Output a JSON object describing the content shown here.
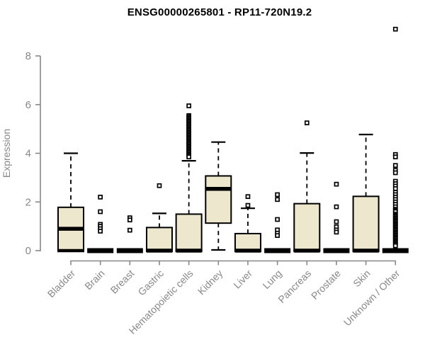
{
  "title": "ENSG00000265801 - RP11-720N19.2",
  "colors": {
    "box_fill": "#ece7cd",
    "box_border": "#000000",
    "axis": "#888888",
    "title_color": "#000000",
    "background": "#ffffff",
    "outlier_stroke": "#000000",
    "outlier_fill": "#ffffff"
  },
  "chart_data": {
    "type": "boxplot",
    "title": "ENSG00000265801 - RP11-720N19.2",
    "xlabel": "",
    "ylabel": "Expression",
    "ylim": [
      0,
      8
    ],
    "yticks": [
      0,
      2,
      4,
      6,
      8
    ],
    "grid": false,
    "legend": "none",
    "categories": [
      "Bladder",
      "Brain",
      "Breast",
      "Gastric",
      "Hematopoietic cells",
      "Kidney",
      "Liver",
      "Lung",
      "Pancreas",
      "Prostate",
      "Skin",
      "Unknown / Other"
    ],
    "series": [
      {
        "name": "Bladder",
        "q1": 0,
        "median": 0.9,
        "q3": 1.78,
        "whisker_low": 0,
        "whisker_high": 4.0,
        "outliers": []
      },
      {
        "name": "Brain",
        "q1": 0,
        "median": 0,
        "q3": 0,
        "whisker_low": 0,
        "whisker_high": 0,
        "outliers": [
          2.2,
          1.6,
          1.08,
          1.0,
          0.9,
          0.8
        ]
      },
      {
        "name": "Breast",
        "q1": 0,
        "median": 0,
        "q3": 0,
        "whisker_low": 0,
        "whisker_high": 0,
        "outliers": [
          1.35,
          1.26,
          0.84
        ]
      },
      {
        "name": "Gastric",
        "q1": 0,
        "median": 0,
        "q3": 0.95,
        "whisker_low": 0,
        "whisker_high": 1.53,
        "outliers": [
          2.67
        ]
      },
      {
        "name": "Hematopoietic cells",
        "q1": 0,
        "median": 0,
        "q3": 1.5,
        "whisker_low": 0,
        "whisker_high": 3.69,
        "outliers": [
          5.95,
          5.55,
          5.5,
          5.45,
          5.4,
          5.35,
          5.3,
          5.25,
          5.2,
          5.15,
          5.1,
          5.05,
          5.0,
          4.95,
          4.9,
          4.85,
          4.8,
          4.75,
          4.7,
          4.65,
          4.6,
          4.55,
          4.5,
          4.45,
          4.4,
          4.35,
          4.3,
          4.25,
          4.2,
          4.15,
          4.1,
          4.05,
          4.0,
          3.95,
          3.9,
          3.85
        ]
      },
      {
        "name": "Kidney",
        "q1": 1.13,
        "median": 2.54,
        "q3": 3.07,
        "whisker_low": 0.03,
        "whisker_high": 4.46,
        "outliers": []
      },
      {
        "name": "Liver",
        "q1": 0,
        "median": 0,
        "q3": 0.7,
        "whisker_low": 0,
        "whisker_high": 1.74,
        "outliers": [
          2.22,
          1.86
        ]
      },
      {
        "name": "Lung",
        "q1": 0,
        "median": 0,
        "q3": 0,
        "whisker_low": 0,
        "whisker_high": 0,
        "outliers": [
          2.3,
          2.1,
          1.28,
          0.85,
          0.72,
          0.62
        ]
      },
      {
        "name": "Pancreas",
        "q1": 0,
        "median": 0,
        "q3": 1.93,
        "whisker_low": 0,
        "whisker_high": 4.01,
        "outliers": [
          5.25
        ]
      },
      {
        "name": "Prostate",
        "q1": 0,
        "median": 0,
        "q3": 0,
        "whisker_low": 0,
        "whisker_high": 0,
        "outliers": [
          2.73,
          1.8,
          1.19,
          0.98,
          0.85,
          0.76
        ]
      },
      {
        "name": "Skin",
        "q1": 0,
        "median": 0,
        "q3": 2.23,
        "whisker_low": 0,
        "whisker_high": 4.77,
        "outliers": []
      },
      {
        "name": "Unknown / Other",
        "q1": 0,
        "median": 0,
        "q3": 0,
        "whisker_low": 0,
        "whisker_high": 0,
        "outliers": [
          9.1,
          3.95,
          3.85,
          3.5,
          3.3,
          3.2,
          2.85,
          2.75,
          2.65,
          2.55,
          2.4,
          2.3,
          2.2,
          2.1,
          2.0,
          1.9,
          1.8,
          1.7,
          1.65,
          1.6,
          1.5,
          1.45,
          1.4,
          1.35,
          1.3,
          1.25,
          1.2,
          1.15,
          1.1,
          1.05,
          1.0,
          0.95,
          0.9,
          0.85,
          0.8,
          0.75,
          0.7,
          0.65,
          0.6,
          0.55,
          0.5,
          0.45,
          0.4,
          0.35,
          0.3,
          0.25,
          0.2
        ]
      }
    ]
  }
}
